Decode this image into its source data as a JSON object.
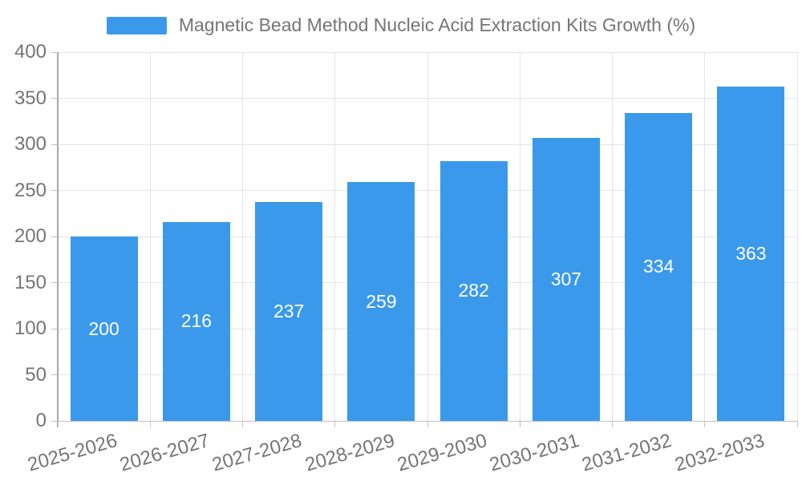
{
  "chart_data": {
    "type": "bar",
    "title": "Magnetic Bead Method Nucleic Acid Extraction Kits Growth (%)",
    "categories": [
      "2025-2026",
      "2026-2027",
      "2027-2028",
      "2028-2029",
      "2029-2030",
      "2030-2031",
      "2031-2032",
      "2032-2033"
    ],
    "values": [
      200,
      216,
      237,
      259,
      282,
      307,
      334,
      363
    ],
    "xlabel": "",
    "ylabel": "",
    "ylim": [
      0,
      400
    ],
    "ytick_step": 50,
    "ytick_labels": [
      "0",
      "50",
      "100",
      "150",
      "200",
      "250",
      "300",
      "350",
      "400"
    ],
    "grid": "horizontal and vertical gridlines on",
    "legend_position": "top-center",
    "value_labels": "inside bars, vertically centered, white"
  },
  "colors": {
    "background": "#FFFFFF",
    "bar": "#3B99EC",
    "grid": "#E4E4E4",
    "y_axis_line": "#A8A8A8",
    "x_axis_line": "#C0C0C0",
    "tick": "#C0C0C0",
    "axis_label": "#757575",
    "value_label": "#FFFFFF"
  }
}
